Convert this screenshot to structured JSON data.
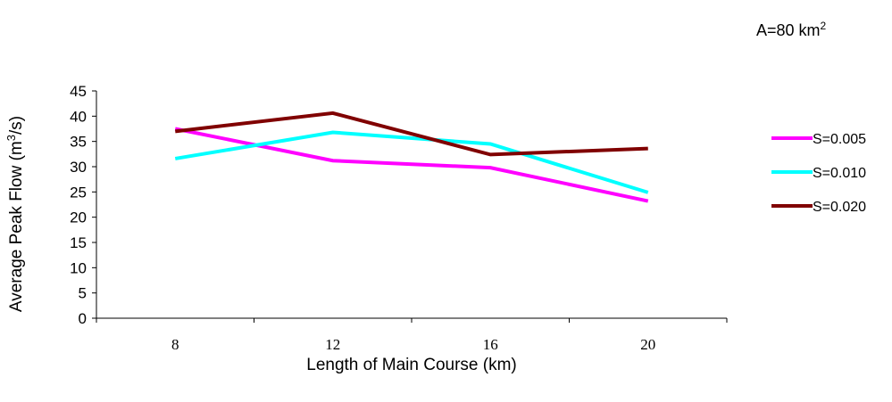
{
  "annotation": {
    "prefix": "A=80 km",
    "sup": "2"
  },
  "chart_data": {
    "type": "line",
    "categories": [
      "8",
      "12",
      "16",
      "20"
    ],
    "series": [
      {
        "name": "S=0.005",
        "color": "#ff00ff",
        "values": [
          37.5,
          31.2,
          29.8,
          23.2
        ]
      },
      {
        "name": "S=0.010",
        "color": "#00ffff",
        "values": [
          31.6,
          36.8,
          34.5,
          24.9
        ]
      },
      {
        "name": "S=0.020",
        "color": "#800000",
        "values": [
          37.0,
          40.6,
          32.4,
          33.6
        ]
      }
    ],
    "xlabel": "Length of Main Course (km)",
    "ylabel": {
      "prefix": "Average Peak Flow (m",
      "sup": "3",
      "suffix": "/s)"
    },
    "ylim": [
      0,
      45
    ],
    "ytick_step": 5,
    "grid": false,
    "legend_position": "right"
  }
}
